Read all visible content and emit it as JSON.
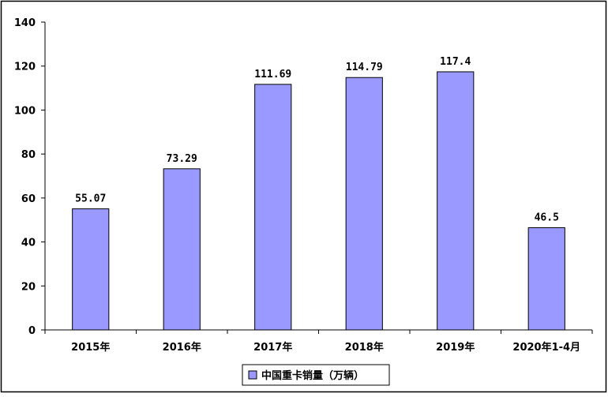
{
  "chart_data": {
    "type": "bar",
    "categories": [
      "2015年",
      "2016年",
      "2017年",
      "2018年",
      "2019年",
      "2020年1-4月"
    ],
    "series": [
      {
        "name": "中国重卡销量（万辆）",
        "values": [
          55.07,
          73.29,
          111.69,
          114.79,
          117.4,
          46.5
        ],
        "labels": [
          "55.07",
          "73.29",
          "111.69",
          "114.79",
          "117.4",
          "46.5"
        ]
      }
    ],
    "yticks": [
      0,
      20,
      40,
      60,
      80,
      100,
      120,
      140
    ],
    "ylim": [
      0,
      140
    ],
    "grid": false,
    "legend": "bottom-center",
    "colors": {
      "bar_fill": "#9999ff",
      "bar_stroke": "#000000",
      "axis": "#000000",
      "frame": "#000000"
    }
  }
}
